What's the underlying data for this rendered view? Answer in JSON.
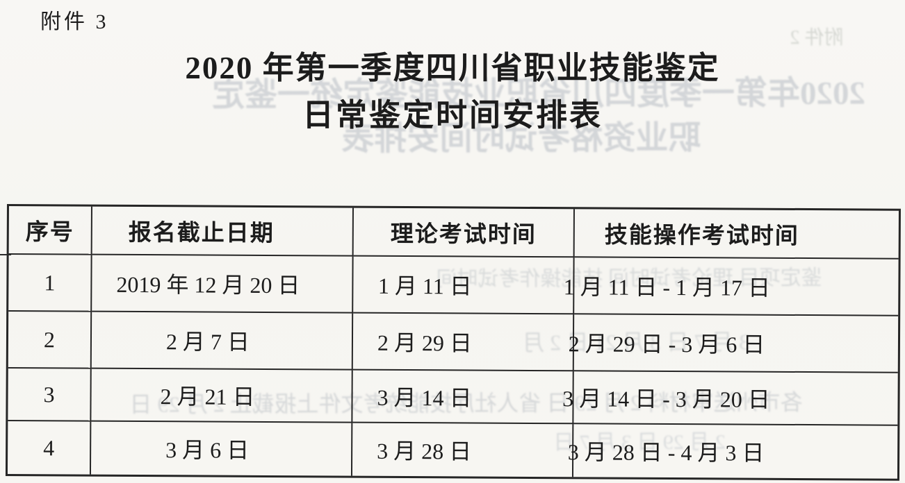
{
  "page": {
    "attachment_label": "附件 3"
  },
  "title": {
    "line1": "2020 年第一季度四川省职业技能鉴定",
    "line2": "日常鉴定时间安排表"
  },
  "table": {
    "headers": [
      "序号",
      "报名截止日期",
      "理论考试时间",
      "技能操作考试时间"
    ],
    "rows": [
      [
        "1",
        "2019 年 12 月 20 日",
        "1 月 11 日",
        "1 月 11 日 - 1 月 17 日"
      ],
      [
        "2",
        "2 月 7 日",
        "2 月 29 日",
        "2 月 29 日 - 3 月 6 日"
      ],
      [
        "3",
        "2 月 21 日",
        "3 月 14 日",
        "3 月 14 日 - 3 月 20 日"
      ],
      [
        "4",
        "3 月 6 日",
        "3 月 28 日",
        "3 月 28 日 - 4 月 3 日"
      ]
    ]
  },
  "bleed_through": {
    "lines": [
      "附件 2",
      "2020年第一季度四川省职业技能鉴定统一鉴定",
      "职业资格考试时间安排表",
      "鉴定项目 理论考试时间 技能操作考试时间",
      "3 月 7 日  3 月 21 日  2 月",
      "各市州送审材料 2 月 29 日 省人社厅技能统考文件上报截止 2 月 29 日",
      "2 月 29 日  3 月 7 日"
    ]
  },
  "colors": {
    "paper": "#f7f6f2",
    "ink": "#1c1c1c",
    "border": "#262626",
    "ghost": "#808ca0"
  }
}
